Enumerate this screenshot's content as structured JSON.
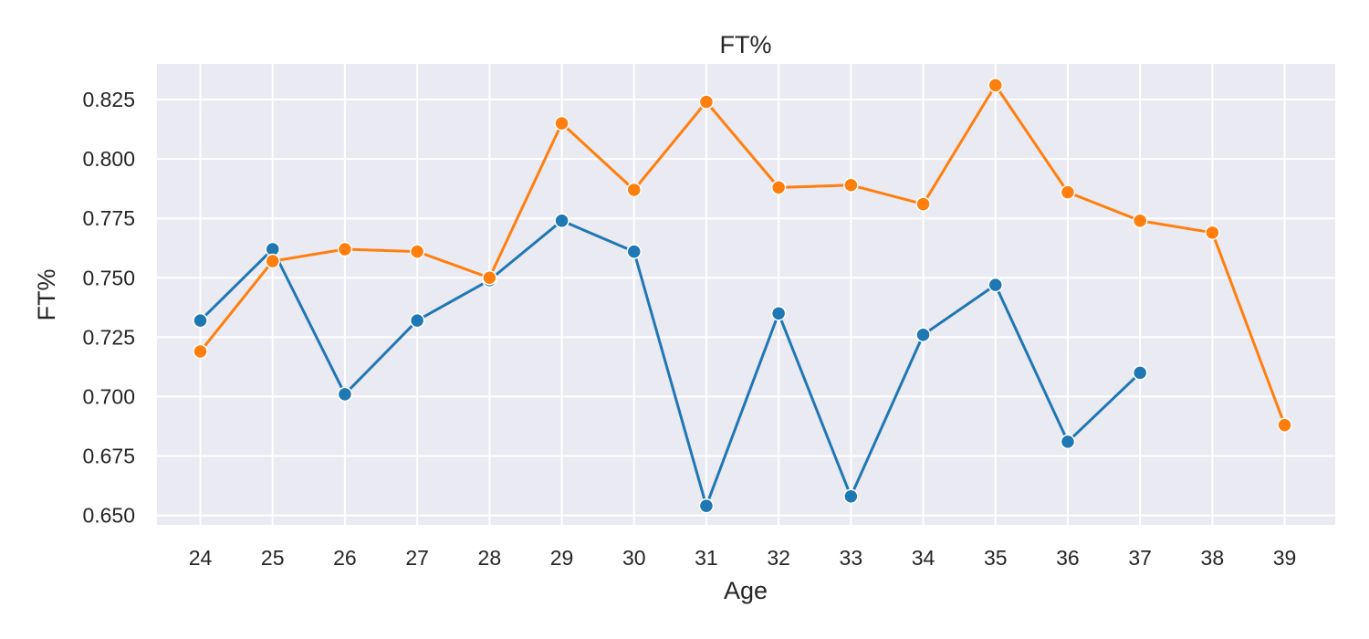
{
  "chart_data": {
    "type": "line",
    "title": "FT%",
    "xlabel": "Age",
    "ylabel": "FT%",
    "x": [
      24,
      25,
      26,
      27,
      28,
      29,
      30,
      31,
      32,
      33,
      34,
      35,
      36,
      37,
      38,
      39
    ],
    "xlim": [
      23.4,
      39.7
    ],
    "ylim": [
      0.646,
      0.84
    ],
    "yticks": [
      0.65,
      0.675,
      0.7,
      0.725,
      0.75,
      0.775,
      0.8,
      0.825
    ],
    "ytick_labels": [
      "0.650",
      "0.675",
      "0.700",
      "0.725",
      "0.750",
      "0.775",
      "0.800",
      "0.825"
    ],
    "grid": true,
    "background": "#eaeaf2",
    "series": [
      {
        "color": "#1f77b4",
        "values": [
          0.732,
          0.762,
          0.701,
          0.732,
          0.749,
          0.774,
          0.761,
          0.654,
          0.735,
          0.658,
          0.726,
          0.747,
          0.681,
          0.71,
          null,
          null
        ]
      },
      {
        "color": "#ff7f0e",
        "values": [
          0.719,
          0.757,
          0.762,
          0.761,
          0.75,
          0.815,
          0.787,
          0.824,
          0.788,
          0.789,
          0.781,
          0.831,
          0.786,
          0.774,
          0.769,
          0.688
        ]
      }
    ]
  }
}
